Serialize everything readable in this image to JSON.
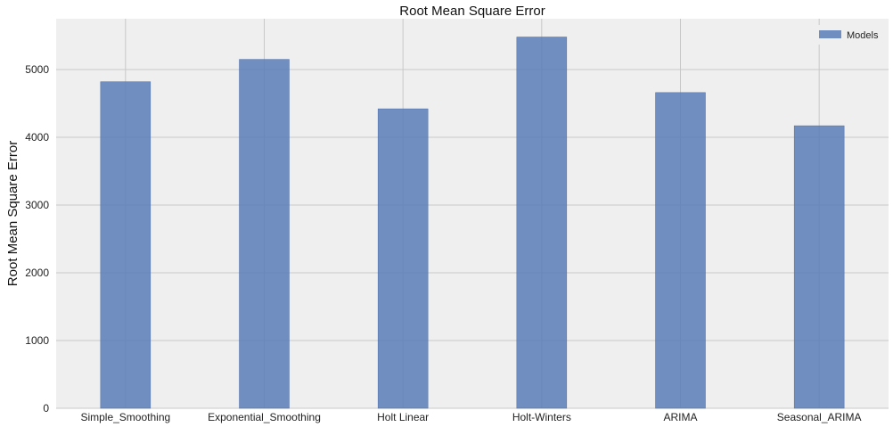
{
  "colors": {
    "plot_background": "#efefef",
    "grid": "#c8c8c8",
    "bar": "#5b7db8",
    "bar_edge": "#4c6ea8"
  },
  "chart_data": {
    "type": "bar",
    "title": "Root Mean Square Error",
    "xlabel": "",
    "ylabel": "Root Mean Square Error",
    "categories": [
      "Simple_Smoothing",
      "Exponential_Smoothing",
      "Holt Linear",
      "Holt-Winters",
      "ARIMA",
      "Seasonal_ARIMA"
    ],
    "series": [
      {
        "name": "Models",
        "values": [
          4820,
          5150,
          4420,
          5480,
          4660,
          4170
        ]
      }
    ],
    "ylim": [
      0,
      5750
    ],
    "yticks": [
      0,
      1000,
      2000,
      3000,
      4000,
      5000
    ],
    "grid": true,
    "legend_position": "top-right"
  }
}
